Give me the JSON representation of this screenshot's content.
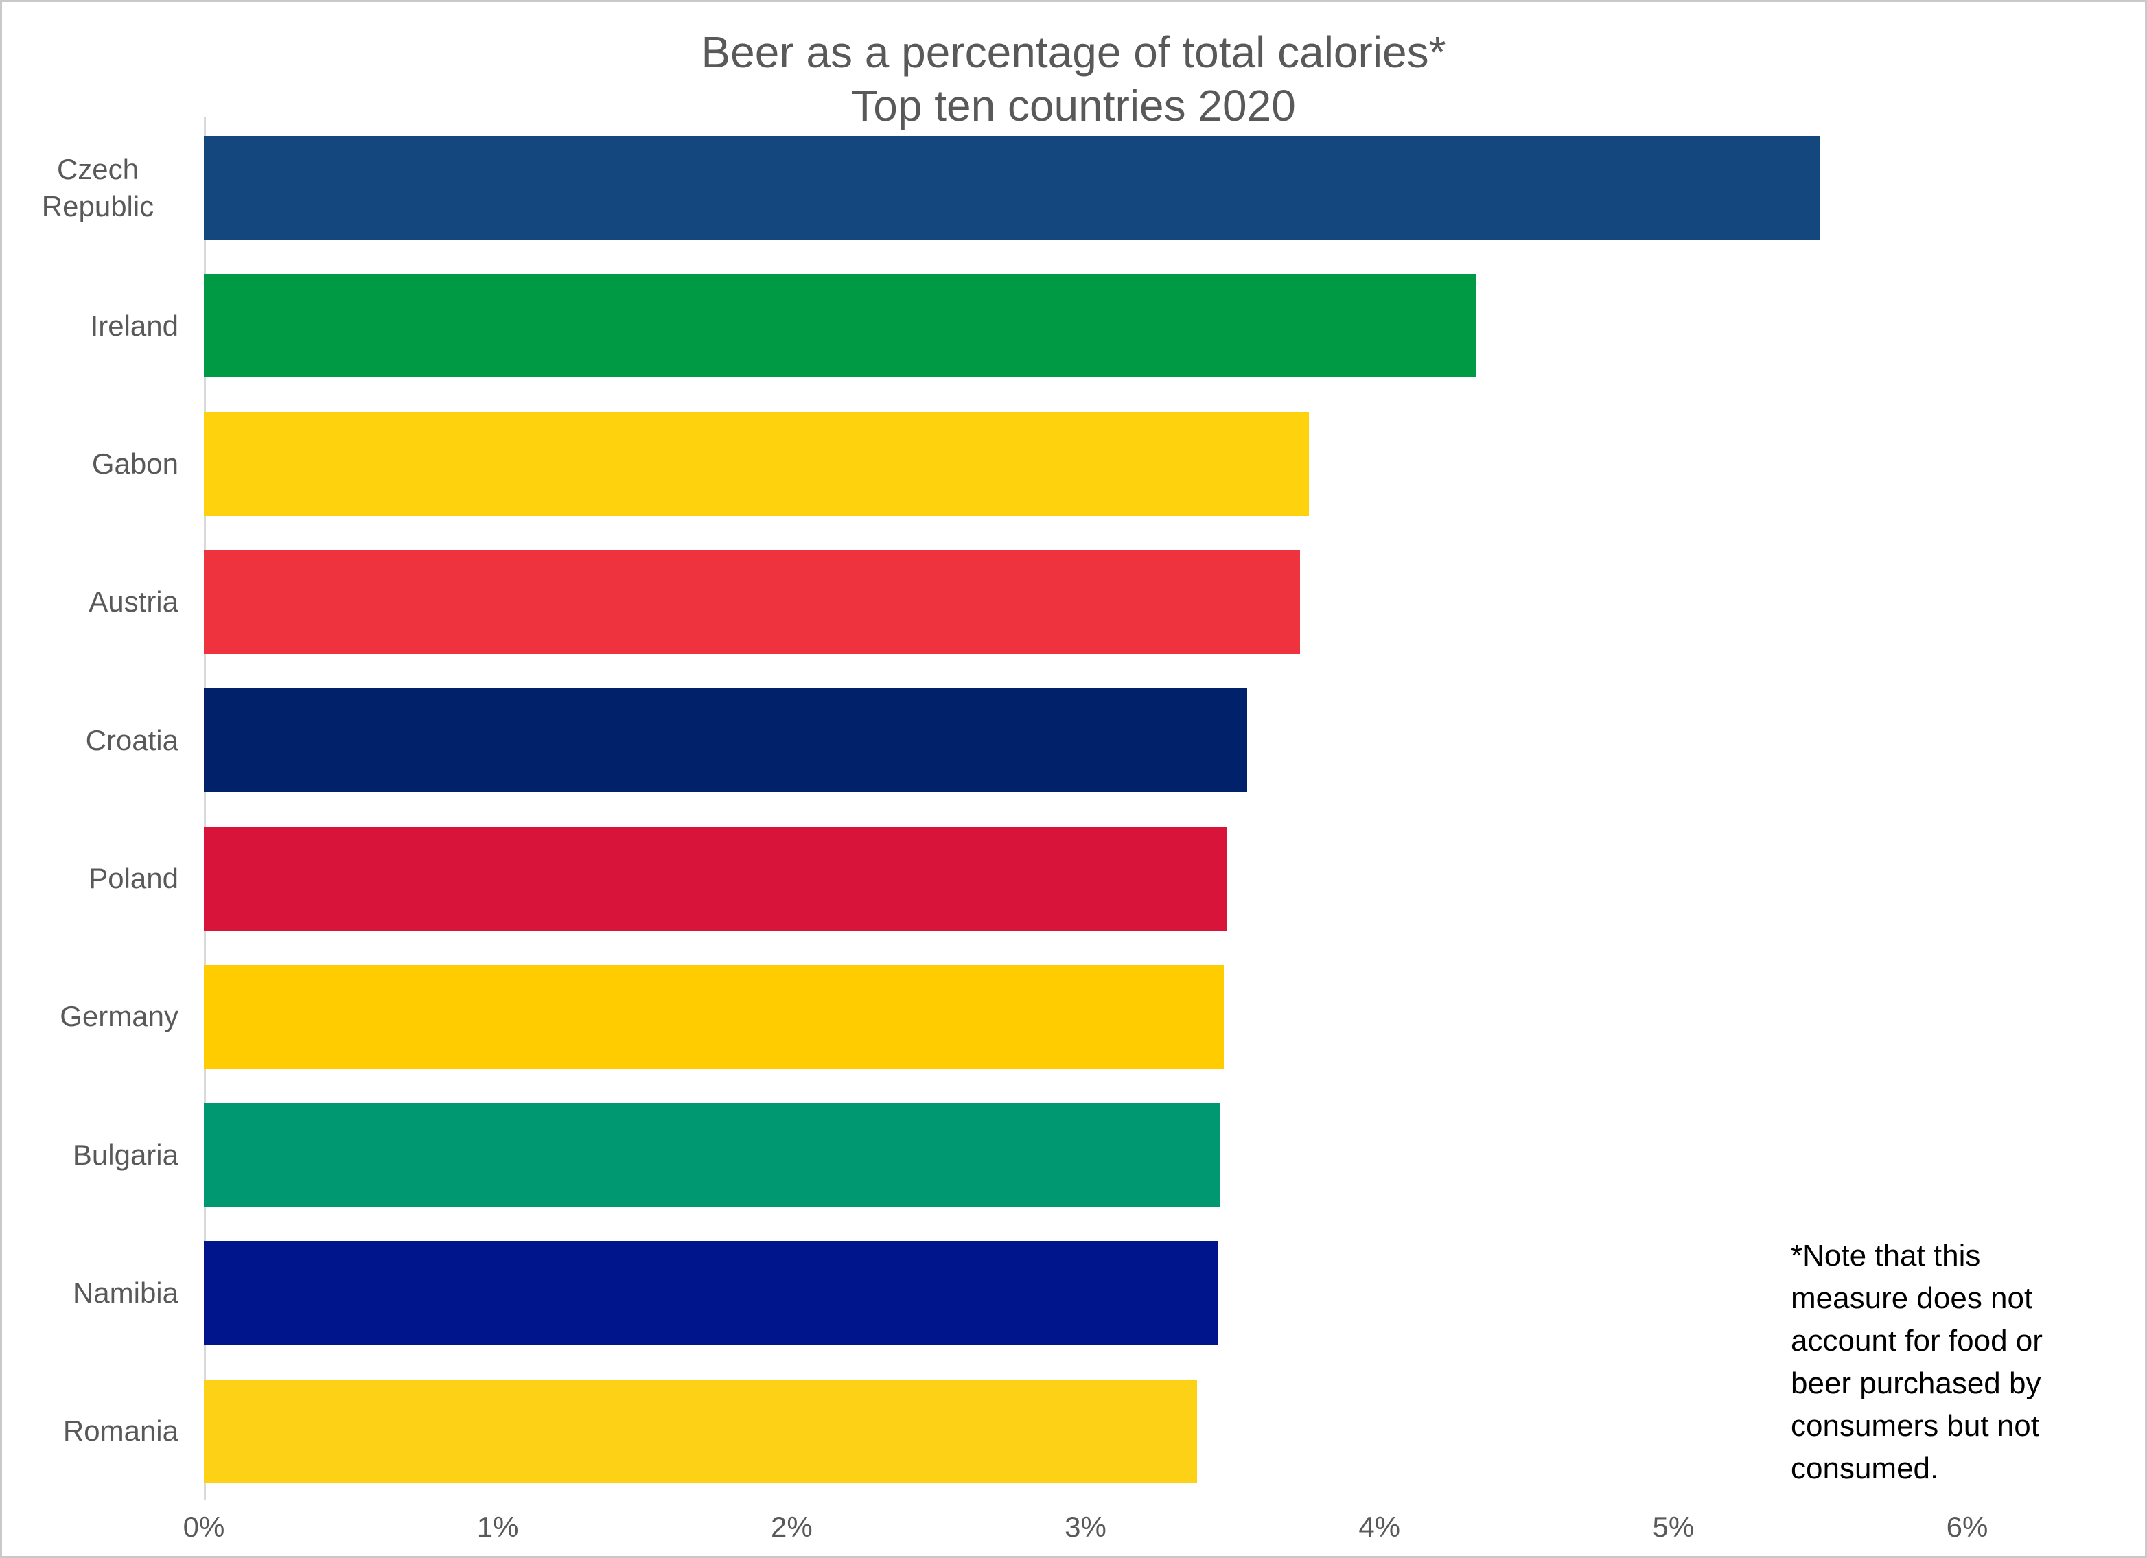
{
  "page": {
    "background": "#ffffff",
    "frame_border_color": "#c9c9c9"
  },
  "chart_data": {
    "type": "bar",
    "orientation": "horizontal",
    "title": "Beer as a percentage of total calories*",
    "subtitle": "Top ten countries 2020",
    "categories": [
      "Czech Republic",
      "Ireland",
      "Gabon",
      "Austria",
      "Croatia",
      "Poland",
      "Germany",
      "Bulgaria",
      "Namibia",
      "Romania"
    ],
    "values": [
      5.5,
      4.33,
      3.76,
      3.73,
      3.55,
      3.48,
      3.47,
      3.46,
      3.45,
      3.38
    ],
    "unit": "%",
    "bar_colors": [
      "#14477D",
      "#009A44",
      "#FFD20E",
      "#EE333F",
      "#01226B",
      "#D8143A",
      "#FFCC00",
      "#009870",
      "#00148C",
      "#FCD116"
    ],
    "x_ticks": [
      "0%",
      "1%",
      "2%",
      "3%",
      "4%",
      "5%",
      "6%"
    ],
    "xlim": [
      0,
      6
    ],
    "grid": "off",
    "legend": "none",
    "axis_line_color": "#d9d9d9",
    "text_color": "#595959",
    "annotation": "*Note that this\nmeasure does not\naccount for food or\nbeer purchased by\nconsumers but not\nconsumed."
  }
}
